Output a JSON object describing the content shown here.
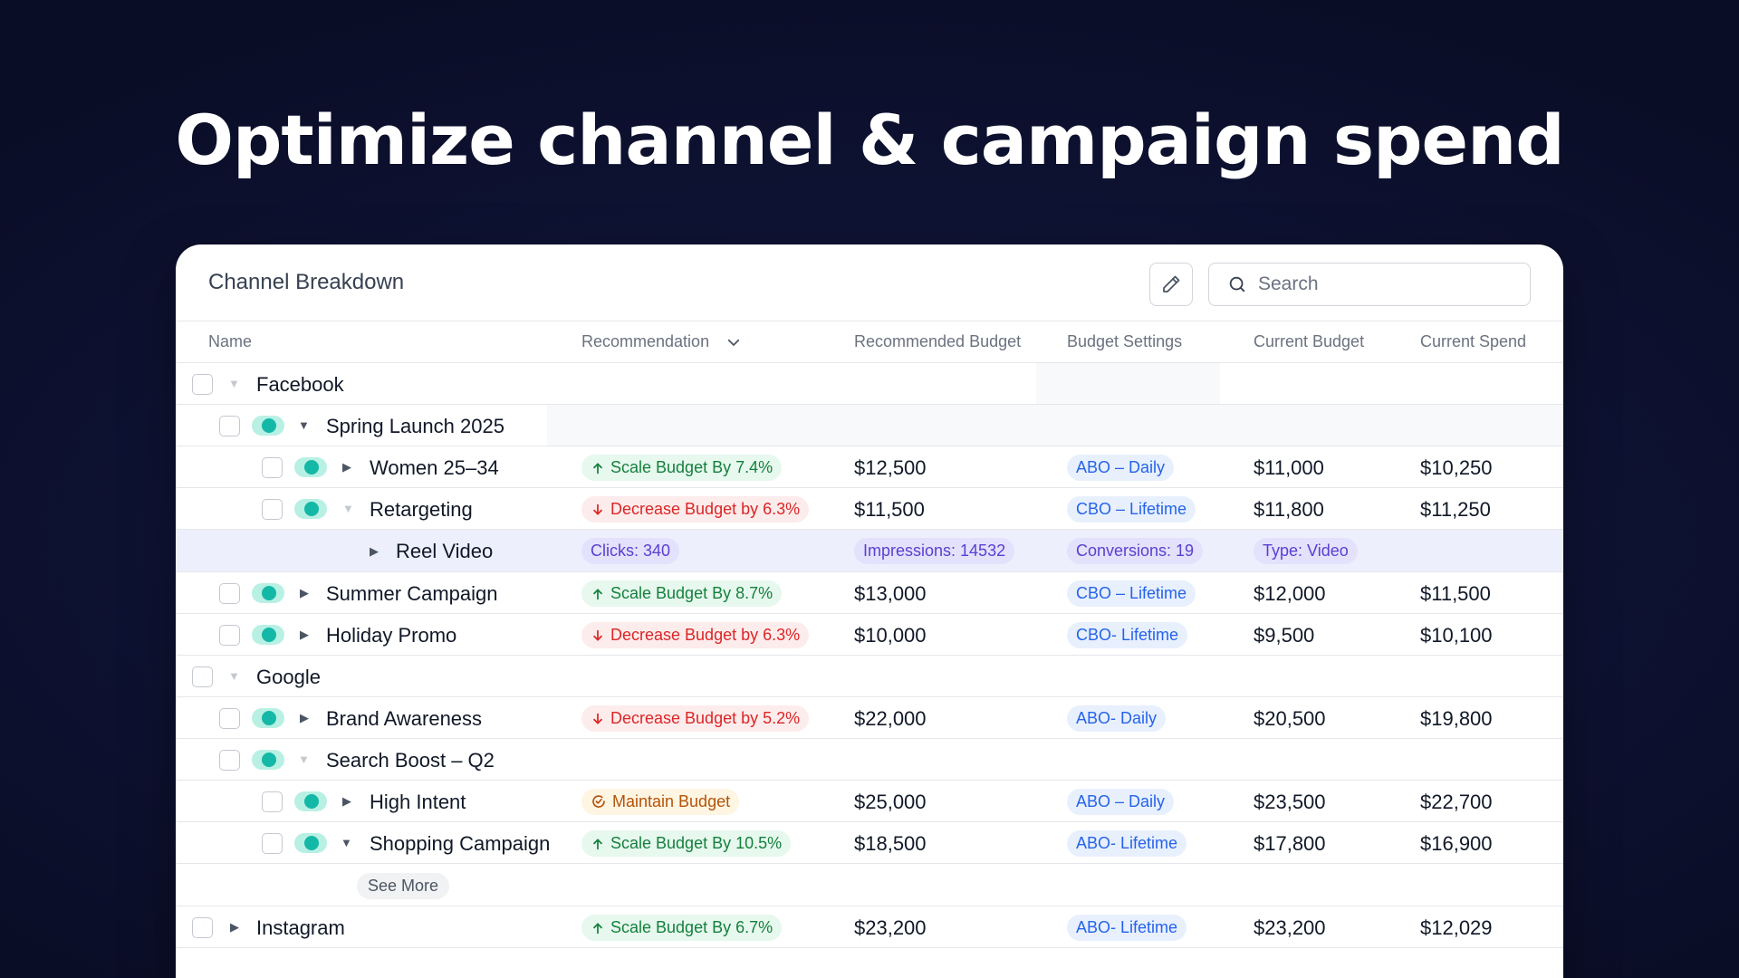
{
  "headline": "Optimize channel & campaign spend",
  "panel": {
    "title": "Channel Breakdown",
    "search_placeholder": "Search"
  },
  "columns": {
    "name": "Name",
    "recommendation": "Recommendation",
    "recommended_budget": "Recommended Budget",
    "budget_settings": "Budget Settings",
    "current_budget": "Current Budget",
    "current_spend": "Current Spend"
  },
  "rows": [
    {
      "name": "Facebook"
    },
    {
      "name": "Spring Launch 2025"
    },
    {
      "name": "Women 25–34",
      "rec": "Scale Budget By 7.4%",
      "recommended": "$12,500",
      "setting": "ABO – Daily",
      "current_budget": "$11,000",
      "current_spend": "$10,250"
    },
    {
      "name": "Retargeting",
      "rec": "Decrease Budget by 6.3%",
      "recommended": "$11,500",
      "setting": "CBO – Lifetime",
      "current_budget": "$11,800",
      "current_spend": "$11,250"
    },
    {
      "name": "Reel Video",
      "clicks": "Clicks: 340",
      "impressions": "Impressions: 14532",
      "conversions": "Conversions: 19",
      "type": "Type: Video"
    },
    {
      "name": "Summer Campaign",
      "rec": "Scale Budget By 8.7%",
      "recommended": "$13,000",
      "setting": "CBO – Lifetime",
      "current_budget": "$12,000",
      "current_spend": "$11,500"
    },
    {
      "name": "Holiday Promo",
      "rec": "Decrease Budget by 6.3%",
      "recommended": "$10,000",
      "setting": "CBO- Lifetime",
      "current_budget": "$9,500",
      "current_spend": "$10,100"
    },
    {
      "name": "Google"
    },
    {
      "name": "Brand Awareness",
      "rec": "Decrease Budget by 5.2%",
      "recommended": "$22,000",
      "setting": "ABO- Daily",
      "current_budget": "$20,500",
      "current_spend": "$19,800"
    },
    {
      "name": "Search Boost – Q2"
    },
    {
      "name": "High Intent",
      "rec": "Maintain Budget",
      "recommended": "$25,000",
      "setting": "ABO – Daily",
      "current_budget": "$23,500",
      "current_spend": "$22,700"
    },
    {
      "name": "Shopping Campaign",
      "rec": "Scale Budget By 10.5%",
      "recommended": "$18,500",
      "setting": "ABO- Lifetime",
      "current_budget": "$17,800",
      "current_spend": "$16,900"
    },
    {
      "see_more": "See More"
    },
    {
      "name": "Instagram",
      "rec": "Scale Budget By 6.7%",
      "recommended": "$23,200",
      "setting": "ABO- Lifetime",
      "current_budget": "$23,200",
      "current_spend": "$12,029"
    }
  ],
  "icons": {
    "edit": "pencil-icon",
    "search": "search-icon",
    "sort": "chevron-down-icon",
    "scale_up": "arrow-up-icon",
    "decrease": "arrow-down-icon",
    "maintain": "check-circle-icon",
    "expand": "triangle-icon"
  },
  "colors": {
    "scale_up_text": "#15803d",
    "decrease_text": "#dc2626",
    "maintain_text": "#b45309",
    "setting_text": "#2563eb",
    "metric_text": "#5b3fd0",
    "toggle_on": "#14b8a6",
    "background": "#0f1436"
  }
}
